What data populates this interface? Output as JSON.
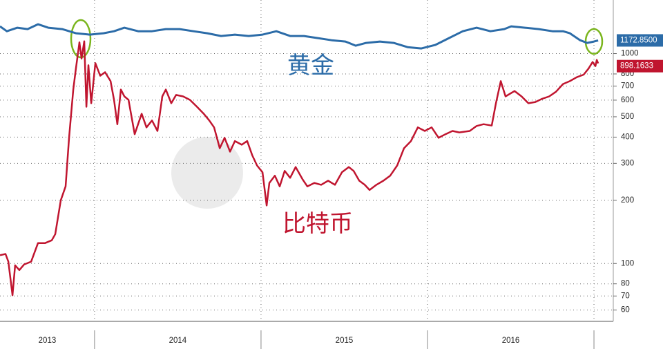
{
  "chart_data": {
    "type": "line",
    "log_y": true,
    "ylim": [
      53,
      1800
    ],
    "yticks": [
      60,
      70,
      80,
      100,
      200,
      300,
      400,
      500,
      600,
      700,
      800,
      1000
    ],
    "y2lim": [
      -2770,
      1740
    ],
    "xlim": [
      2013.432,
      2017.116
    ],
    "xticks": [
      2014,
      2015,
      2016,
      2017
    ],
    "year_labels": [
      "2013",
      "2014",
      "2015",
      "2016"
    ],
    "grid": true,
    "annotations": [
      "黄金",
      "比特币"
    ],
    "series": [
      {
        "name": "比特币",
        "color": "#c0152f",
        "x": [
          2013.432,
          2013.465,
          2013.482,
          2013.507,
          2013.523,
          2013.548,
          2013.577,
          2013.619,
          2013.66,
          2013.702,
          2013.743,
          2013.764,
          2013.797,
          2013.826,
          2013.847,
          2013.872,
          2013.888,
          2013.909,
          2013.922,
          2013.938,
          2013.951,
          2013.963,
          2013.98,
          2014.005,
          2014.034,
          2014.063,
          2014.096,
          2014.117,
          2014.137,
          2014.158,
          2014.179,
          2014.204,
          2014.241,
          2014.283,
          2014.312,
          2014.345,
          2014.378,
          2014.407,
          2014.428,
          2014.461,
          2014.49,
          2014.532,
          2014.573,
          2014.615,
          2014.656,
          2014.689,
          2014.718,
          2014.752,
          2014.781,
          2014.814,
          2014.843,
          2014.884,
          2014.917,
          2014.947,
          2014.976,
          2015.009,
          2015.034,
          2015.05,
          2015.083,
          2015.112,
          2015.142,
          2015.175,
          2015.208,
          2015.249,
          2015.278,
          2015.32,
          2015.361,
          2015.403,
          2015.444,
          2015.486,
          2015.527,
          2015.556,
          2015.59,
          2015.623,
          2015.652,
          2015.693,
          2015.735,
          2015.776,
          2015.818,
          2015.859,
          2015.901,
          2015.942,
          2015.984,
          2016.025,
          2016.067,
          2016.108,
          2016.15,
          2016.191,
          2016.254,
          2016.295,
          2016.337,
          2016.386,
          2016.411,
          2016.44,
          2016.469,
          2016.523,
          2016.565,
          2016.606,
          2016.648,
          2016.689,
          2016.731,
          2016.772,
          2016.814,
          2016.855,
          2016.897,
          2016.938,
          2016.967,
          2016.992,
          2017.009,
          2017.017,
          2017.025
        ],
        "values": [
          109.5,
          111,
          102,
          70.6,
          98,
          93,
          99,
          102,
          125,
          125,
          129,
          138,
          200,
          233,
          397,
          674,
          848,
          1131,
          947,
          1145,
          558,
          880,
          580,
          900,
          784,
          815,
          739,
          602,
          461,
          674,
          625,
          602,
          413,
          517,
          445,
          480,
          428,
          625,
          674,
          580,
          635,
          625,
          602,
          558,
          517,
          480,
          445,
          354,
          397,
          341,
          383,
          368,
          383,
          328,
          293,
          272,
          189,
          242,
          262,
          233,
          276,
          256,
          288,
          252,
          233,
          242,
          237,
          248,
          237,
          272,
          288,
          276,
          248,
          237,
          224,
          237,
          248,
          262,
          293,
          354,
          383,
          445,
          428,
          445,
          397,
          413,
          428,
          421,
          428,
          452,
          461,
          454,
          580,
          739,
          625,
          663,
          625,
          580,
          588,
          609,
          625,
          658,
          716,
          739,
          772,
          794,
          848,
          912,
          872,
          933,
          898.1633
        ]
      },
      {
        "name": "黄金",
        "color": "#2c6ca8",
        "axis": "y2",
        "x": [
          2013.432,
          2013.473,
          2013.536,
          2013.598,
          2013.66,
          2013.722,
          2013.805,
          2013.888,
          2013.971,
          2014.054,
          2014.117,
          2014.179,
          2014.262,
          2014.345,
          2014.428,
          2014.511,
          2014.594,
          2014.677,
          2014.76,
          2014.843,
          2014.926,
          2015.009,
          2015.092,
          2015.175,
          2015.258,
          2015.341,
          2015.424,
          2015.507,
          2015.569,
          2015.631,
          2015.714,
          2015.797,
          2015.88,
          2015.963,
          2016.046,
          2016.129,
          2016.212,
          2016.295,
          2016.378,
          2016.461,
          2016.503,
          2016.585,
          2016.668,
          2016.751,
          2016.814,
          2016.855,
          2016.917,
          2016.959,
          2017.0,
          2017.025
        ],
        "values": [
          1370,
          1302,
          1351,
          1332,
          1400,
          1351,
          1332,
          1273,
          1254,
          1273,
          1302,
          1351,
          1302,
          1302,
          1332,
          1332,
          1302,
          1273,
          1235,
          1254,
          1235,
          1254,
          1302,
          1235,
          1235,
          1206,
          1176,
          1157,
          1099,
          1138,
          1157,
          1138,
          1079,
          1060,
          1109,
          1206,
          1302,
          1351,
          1302,
          1332,
          1370,
          1351,
          1332,
          1302,
          1302,
          1273,
          1176,
          1138,
          1157,
          1172.85
        ],
        "end_label": "1172.8500"
      }
    ]
  }
}
